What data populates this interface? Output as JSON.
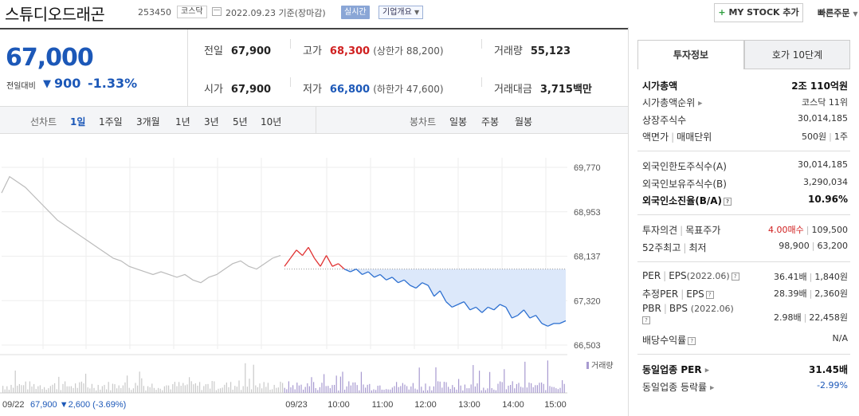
{
  "header": {
    "title": "스튜디오드래곤",
    "code": "253450",
    "market": "코스닥",
    "date_text": "2022.09.23 기준(장마감)",
    "realtime_label": "실시간",
    "company_label": "기업개요",
    "mystock_label": "MY STOCK 추가",
    "quick_order_label": "빠른주문"
  },
  "summary": {
    "current_price": "67,000",
    "prev_label": "전일대비",
    "change_value": "900",
    "change_pct": "-1.33%",
    "prev_close_label": "전일",
    "prev_close": "67,900",
    "open_label": "시가",
    "open": "67,900",
    "high_label": "고가",
    "high": "68,300",
    "upper_limit": "(상한가 88,200)",
    "low_label": "저가",
    "low": "66,800",
    "lower_limit": "(하한가 47,600)",
    "volume_label": "거래량",
    "volume": "55,123",
    "amount_label": "거래대금",
    "amount": "3,715",
    "amount_unit": "백만"
  },
  "chart_tabs": {
    "line_label": "선차트",
    "periods": [
      "1일",
      "1주일",
      "3개월",
      "1년",
      "3년",
      "5년",
      "10년"
    ],
    "active_period": "1일",
    "candle_label": "봉차트",
    "candles": [
      "일봉",
      "주봉",
      "월봉"
    ]
  },
  "chart_data": {
    "type": "line",
    "price_axis": [
      "69,770",
      "68,953",
      "68,137",
      "67,320",
      "66,503"
    ],
    "ylim": [
      66503,
      69770
    ],
    "reference_price": 67900,
    "x_labels": [
      "09/23",
      "10:00",
      "11:00",
      "12:00",
      "13:00",
      "14:00",
      "15:00"
    ],
    "prev_day_label": "09/22",
    "prev_day_summary": "67,900 ▼2,600 (-3.69%)",
    "volume_label": "거래량",
    "prev_day_series": [
      69300,
      69600,
      69500,
      69400,
      69250,
      69100,
      68950,
      68800,
      68700,
      68600,
      68500,
      68400,
      68300,
      68200,
      68100,
      68050,
      67950,
      67900,
      67850,
      67800,
      67850,
      67800,
      67750,
      67800,
      67700,
      67650,
      67750,
      67800,
      67900,
      68000,
      68050,
      67950,
      67900,
      68000,
      68100,
      68150
    ],
    "today_series": [
      67950,
      68100,
      68250,
      68150,
      68300,
      68100,
      67950,
      68150,
      67950,
      68000,
      67900,
      67850,
      67900,
      67800,
      67850,
      67750,
      67800,
      67700,
      67750,
      67650,
      67700,
      67600,
      67550,
      67650,
      67600,
      67400,
      67500,
      67300,
      67200,
      67250,
      67300,
      67150,
      67200,
      67100,
      67200,
      67150,
      67250,
      67200,
      67000,
      67050,
      67150,
      67000,
      67050,
      66900,
      66850,
      66900,
      66900,
      66950
    ]
  },
  "panel": {
    "tab_invest": "투자정보",
    "tab_hoga": "호가 10단계",
    "market_cap_label": "시가총액",
    "market_cap": "2조 110억원",
    "cap_rank_label": "시가총액순위",
    "cap_rank": "코스닥 11위",
    "shares_label": "상장주식수",
    "shares": "30,014,185",
    "face_label": "액면가",
    "unit_label": "매매단위",
    "face_unit": "500원",
    "unit_value": "1주",
    "foreign_limit_label": "외국인한도주식수(A)",
    "foreign_limit": "30,014,185",
    "foreign_hold_label": "외국인보유주식수(B)",
    "foreign_hold": "3,290,034",
    "foreign_ratio_label": "외국인소진율(B/A)",
    "foreign_ratio": "10.96%",
    "opinion_label": "투자의견",
    "target_label": "목표주가",
    "opinion": "4.00매수",
    "target": "109,500",
    "hl52_label": "52주최고",
    "low52_label": "최저",
    "high52": "98,900",
    "low52": "63,200",
    "per_label": "PER",
    "eps_label": "EPS",
    "eps_date": "(2022.06)",
    "per": "36.41배",
    "eps": "1,840원",
    "est_per_label": "추정PER",
    "est_eps_label": "EPS",
    "est_per": "28.39배",
    "est_eps": "2,360원",
    "pbr_label": "PBR",
    "bps_label": "BPS",
    "bps_date": "(2022.06)",
    "pbr": "2.98배",
    "bps": "22,458원",
    "dividend_label": "배당수익률",
    "dividend": "N/A",
    "sector_per_label": "동일업종 PER",
    "sector_per": "31.45배",
    "sector_rate_label": "동일업종 등락률",
    "sector_rate": "-2.99%"
  }
}
